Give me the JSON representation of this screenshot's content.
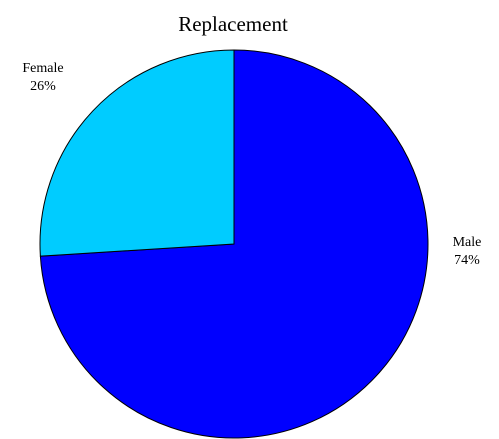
{
  "chart_data": {
    "type": "pie",
    "title": "Replacement",
    "slices": [
      {
        "label": "Male",
        "value": 74,
        "display": "74%",
        "color": "#0000ff"
      },
      {
        "label": "Female",
        "value": 26,
        "display": "26%",
        "color": "#00ccff"
      }
    ]
  }
}
